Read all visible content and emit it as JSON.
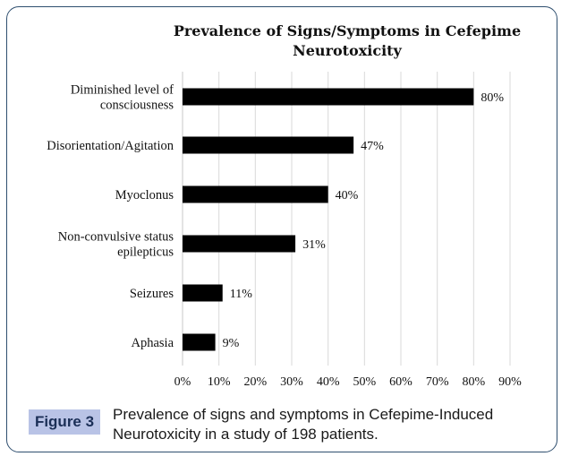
{
  "chart_data": {
    "type": "bar",
    "orientation": "horizontal",
    "title": "Prevalence of Signs/Symptoms in Cefepime Neurotoxicity",
    "title_lines": [
      "Prevalence of Signs/Symptoms in Cefepime",
      "Neurotoxicity"
    ],
    "categories": [
      "Diminished level of consciousness",
      "Disorientation/Agitation",
      "Myoclonus",
      "Non-convulsive status epilepticus",
      "Seizures",
      "Aphasia"
    ],
    "category_lines": [
      [
        "Diminished level of",
        "consciousness"
      ],
      [
        "Disorientation/Agitation"
      ],
      [
        "Myoclonus"
      ],
      [
        "Non-convulsive status",
        "epilepticus"
      ],
      [
        "Seizures"
      ],
      [
        "Aphasia"
      ]
    ],
    "values": [
      80,
      47,
      40,
      31,
      11,
      9
    ],
    "data_labels": [
      "80%",
      "47%",
      "40%",
      "31%",
      "11%",
      "9%"
    ],
    "xlim": [
      0,
      90
    ],
    "x_ticks": [
      0,
      10,
      20,
      30,
      40,
      50,
      60,
      70,
      80,
      90
    ],
    "x_tick_labels": [
      "0%",
      "10%",
      "20%",
      "30%",
      "40%",
      "50%",
      "60%",
      "70%",
      "80%",
      "90%"
    ],
    "grid": "vertical",
    "bar_color": "#000000",
    "legend": "none"
  },
  "figure": {
    "label": "Figure 3",
    "caption": "Prevalence of signs and symptoms in Cefepime-Induced Neurotoxicity in a study of 198 patients.",
    "badge_color": "#b9c3e6",
    "border_color": "#2f4f6f"
  }
}
